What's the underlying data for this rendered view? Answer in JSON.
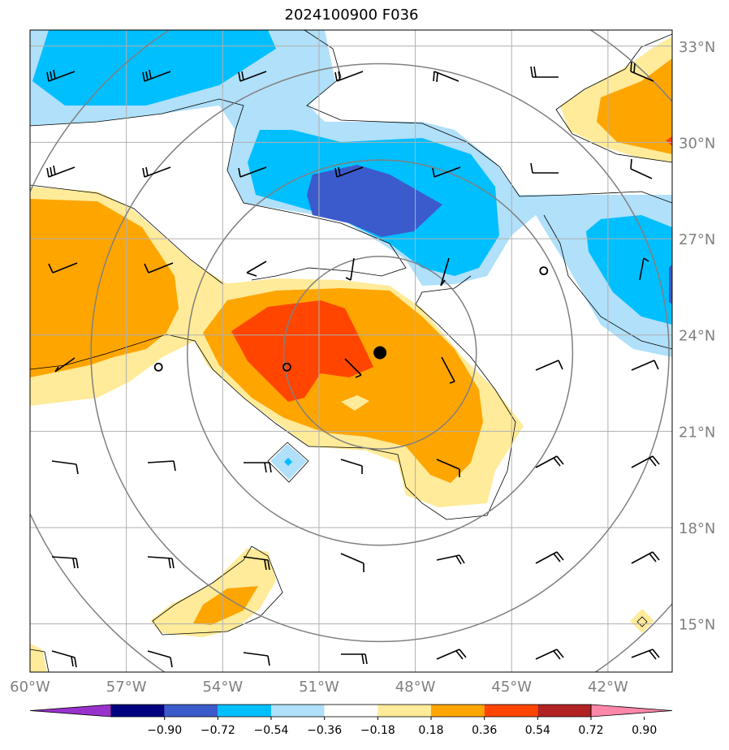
{
  "title": "2024100900 F036",
  "map": {
    "lon_range": [
      -60,
      -40
    ],
    "lat_range": [
      13.5,
      33.5
    ],
    "lon_ticks": [
      {
        "value": -60,
        "label": "60°W"
      },
      {
        "value": -57,
        "label": "57°W"
      },
      {
        "value": -54,
        "label": "54°W"
      },
      {
        "value": -51,
        "label": "51°W"
      },
      {
        "value": -48,
        "label": "48°W"
      },
      {
        "value": -45,
        "label": "45°W"
      },
      {
        "value": -42,
        "label": "42°W"
      }
    ],
    "lat_ticks": [
      {
        "value": 33,
        "label": "33°N"
      },
      {
        "value": 30,
        "label": "30°N"
      },
      {
        "value": 27,
        "label": "27°N"
      },
      {
        "value": 24,
        "label": "24°N"
      },
      {
        "value": 21,
        "label": "21°N"
      },
      {
        "value": 18,
        "label": "18°N"
      },
      {
        "value": 15,
        "label": "15°N"
      }
    ],
    "grid": true,
    "center": {
      "lon": -49.1,
      "lat": 23.45
    },
    "range_rings_deg": [
      3,
      6,
      9,
      12
    ],
    "open_circles": [
      {
        "lon": -56.0,
        "lat": 23.0
      },
      {
        "lon": -52.0,
        "lat": 23.0
      },
      {
        "lon": -44.0,
        "lat": 26.0
      }
    ]
  },
  "colorbar": {
    "labels": [
      "−0.90",
      "−0.72",
      "−0.54",
      "−0.36",
      "−0.18",
      "0.18",
      "0.36",
      "0.54",
      "0.72",
      "0.90"
    ],
    "colors": [
      "#9932cc",
      "#000080",
      "#3b5bcc",
      "#00bfff",
      "#b0e0fa",
      "#ffffff",
      "#ffeb99",
      "#ffa500",
      "#ff4500",
      "#b22222",
      "#ff88aa"
    ],
    "extend": "both"
  },
  "colors": {
    "grid": "#b0b0b0",
    "rings": "#808080",
    "contour": "#000000"
  }
}
